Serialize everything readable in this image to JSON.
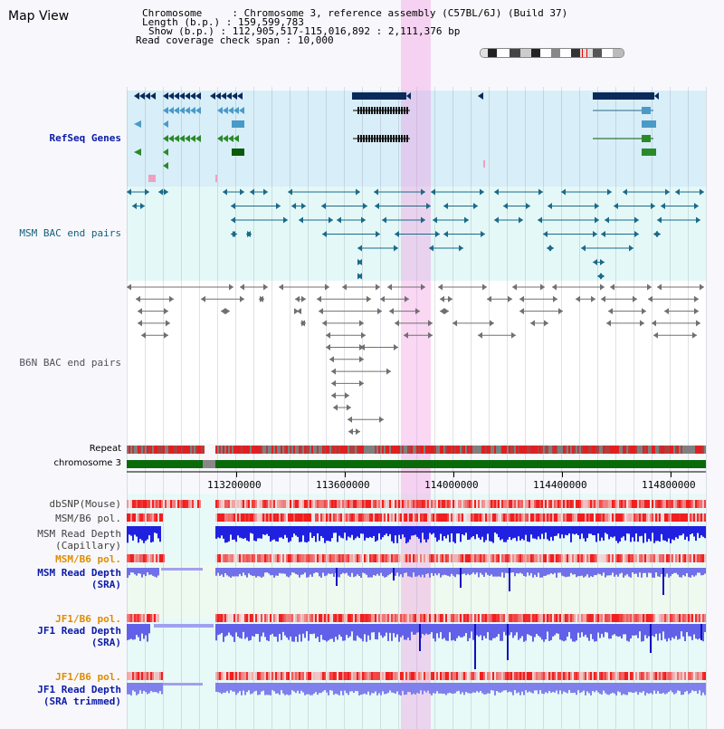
{
  "header": {
    "title": "Map View",
    "chromosome_label": "Chromosome",
    "chromosome_value": "Chromosome 3, reference assembly (C57BL/6J) (Build 37)",
    "length_label": "Length (b.p.)",
    "length_value": "159,599,783",
    "show_label": "Show (b.p.)",
    "show_value": "112,905,517-115,016,892 : 2,111,376 bp",
    "coverage_label": "Read coverage check span",
    "coverage_value": "10,000"
  },
  "tracks": {
    "refseq": "RefSeq Genes",
    "msm_bac": "MSM BAC end pairs",
    "b6n_bac": "B6N BAC end pairs",
    "repeat": "Repeat",
    "chromosome": "chromosome 3",
    "dbsnp": "dbSNP(Mouse)",
    "msm_b6_pol_1": "MSM/B6 pol.",
    "msm_depth_cap_1": "MSM Read Depth",
    "msm_depth_cap_2": "(Capillary)",
    "msm_b6_pol_2": "MSM/B6 pol.",
    "msm_depth_sra_1": "MSM Read Depth",
    "msm_depth_sra_2": "(SRA)",
    "jf1_b6_pol_1": "JF1/B6 pol.",
    "jf1_depth_sra_1": "JF1 Read Depth",
    "jf1_depth_sra_2": "(SRA)",
    "jf1_b6_pol_2": "JF1/B6 pol.",
    "jf1_depth_trim_1": "JF1 Read Depth",
    "jf1_depth_trim_2": "(SRA trimmed)"
  },
  "axis": {
    "ticks": [
      "113200000",
      "113600000",
      "114000000",
      "114400000",
      "114800000"
    ]
  },
  "colors": {
    "refseq_bg": "#d8eef8",
    "bac_bg": "#e4f8f8",
    "lower_bg": "#e8faf8",
    "highlight": "#f8c8ec",
    "chromosome": "#0a6a0a"
  }
}
